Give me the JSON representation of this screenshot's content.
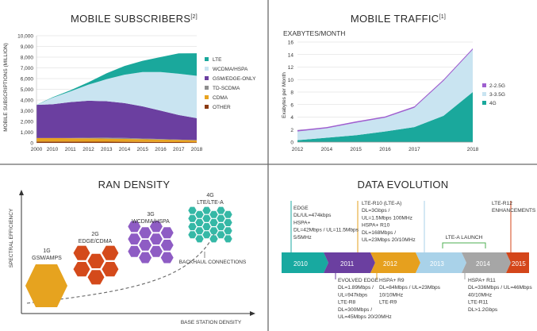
{
  "dividers": true,
  "colors": {
    "lte": "#1aa89c",
    "wcdma": "#c9e4f1",
    "gsm": "#6b3fa0",
    "tdscdma": "#8e8e8e",
    "cdma": "#e8a321",
    "other": "#8b3a12",
    "g22_5": "#9e5fcf",
    "g33_5": "#c9e4f1",
    "g4": "#1aa89c",
    "red": "#d44a1b",
    "purple": "#8e5cc4",
    "teal": "#35b8a6",
    "ev2010": "#18a9a0",
    "ev2011": "#6b3fa0",
    "ev2012": "#e6a01e",
    "ev2013": "#a9d2e9",
    "ev2014": "#a6a6a6",
    "ev2015": "#d4461a"
  },
  "chart_data": [
    {
      "type": "area",
      "title": "MOBILE SUBSCRIBERS",
      "title_sup": "[2]",
      "xlabel": "",
      "ylabel": "MOBILE SUBSCRIPTIONS (MILLION)",
      "x": [
        2000,
        2001,
        2002,
        2003,
        2004,
        2005,
        2006,
        2007,
        2008,
        2009,
        2010,
        2011,
        2012,
        2013,
        2014,
        2015,
        2016,
        2017,
        2018
      ],
      "x_ticks": [
        "2000",
        "2010",
        "2011",
        "2012",
        "2013",
        "2014",
        "2015",
        "2016",
        "2017",
        "2018"
      ],
      "y_ticks": [
        "0",
        "1,000",
        "2,000",
        "3,000",
        "4,000",
        "5,000",
        "6,000",
        "7,000",
        "8,000",
        "9,000",
        "10,000"
      ],
      "ylim": [
        0,
        10000
      ],
      "stacked": true,
      "series": [
        {
          "name": "OTHER",
          "color": "#8b3a12",
          "points": [
            [
              2000,
              120
            ],
            [
              2010,
              120
            ],
            [
              2013,
              110
            ],
            [
              2015,
              90
            ],
            [
              2018,
              60
            ]
          ]
        },
        {
          "name": "CDMA",
          "color": "#e8a321",
          "points": [
            [
              2000,
              330
            ],
            [
              2010,
              330
            ],
            [
              2012,
              310
            ],
            [
              2014,
              270
            ],
            [
              2016,
              230
            ],
            [
              2018,
              180
            ]
          ]
        },
        {
          "name": "TD-SCDMA",
          "color": "#8e8e8e",
          "points": [
            [
              2000,
              0
            ],
            [
              2010,
              0
            ],
            [
              2011,
              20
            ],
            [
              2012,
              60
            ],
            [
              2013,
              90
            ],
            [
              2014,
              90
            ],
            [
              2015,
              70
            ],
            [
              2016,
              50
            ],
            [
              2017,
              30
            ],
            [
              2018,
              20
            ]
          ]
        },
        {
          "name": "GSM/EDGE-ONLY",
          "color": "#6b3fa0",
          "points": [
            [
              2000,
              3100
            ],
            [
              2010,
              3150
            ],
            [
              2011,
              3350
            ],
            [
              2012,
              3450
            ],
            [
              2013,
              3400
            ],
            [
              2014,
              3250
            ],
            [
              2015,
              3000
            ],
            [
              2016,
              2650
            ],
            [
              2017,
              2300
            ],
            [
              2018,
              2050
            ]
          ]
        },
        {
          "name": "WCDMA/HSPA",
          "color": "#c9e4f1",
          "points": [
            [
              2000,
              0
            ],
            [
              2010,
              600
            ],
            [
              2011,
              1000
            ],
            [
              2012,
              1500
            ],
            [
              2013,
              2050
            ],
            [
              2014,
              2650
            ],
            [
              2015,
              3200
            ],
            [
              2016,
              3600
            ],
            [
              2017,
              3850
            ],
            [
              2018,
              3950
            ]
          ]
        },
        {
          "name": "LTE",
          "color": "#1aa89c",
          "points": [
            [
              2000,
              0
            ],
            [
              2010,
              50
            ],
            [
              2011,
              100
            ],
            [
              2012,
              220
            ],
            [
              2013,
              550
            ],
            [
              2014,
              820
            ],
            [
              2015,
              1050
            ],
            [
              2016,
              1400
            ],
            [
              2017,
              1900
            ],
            [
              2018,
              2100
            ]
          ]
        }
      ],
      "legend": [
        "LTE",
        "WCDMA/HSPA",
        "GSM/EDGE-ONLY",
        "TD-SCDMA",
        "CDMA",
        "OTHER"
      ],
      "legend_placement": "right"
    },
    {
      "type": "area",
      "title": "MOBILE TRAFFIC",
      "title_sup": "[1]",
      "unit_label": "EXABYTES/MONTH",
      "ylabel": "Exabytes per Month",
      "x": [
        2012,
        2013,
        2014,
        2015,
        2016,
        2017,
        2018
      ],
      "x_ticks": [
        "2012",
        "2014",
        "2015",
        "2016",
        "2017",
        "2018"
      ],
      "y_ticks": [
        "0",
        "2",
        "4",
        "6",
        "8",
        "10",
        "12",
        "14",
        "16"
      ],
      "ylim": [
        0,
        16
      ],
      "stacked": true,
      "series": [
        {
          "name": "4G",
          "color": "#1aa89c",
          "values": [
            0.3,
            0.7,
            1.1,
            1.7,
            2.4,
            4.2,
            8.0
          ]
        },
        {
          "name": "3-3.5G",
          "color": "#c9e4f1",
          "values": [
            1.4,
            1.5,
            2.0,
            2.2,
            3.1,
            5.6,
            6.8
          ]
        },
        {
          "name": "2-2.5G",
          "color": "#9e5fcf",
          "values": [
            0.2,
            0.2,
            0.2,
            0.2,
            0.2,
            0.2,
            0.2
          ]
        }
      ],
      "legend": [
        "2-2.5G",
        "3-3.5G",
        "4G"
      ],
      "legend_placement": "right"
    }
  ],
  "ran": {
    "title": "RAN DENSITY",
    "ylabel": "SPECTRAL EFFICIENCY",
    "xlabel": "BASE STATION DENSITY",
    "backhaul": "BACKHAUL CONNECTIONS",
    "gens": [
      {
        "line1": "1G",
        "line2": "GSM/AMPS"
      },
      {
        "line1": "2G",
        "line2": "EDGE/CDMA"
      },
      {
        "line1": "3G",
        "line2": "WCDMA/HSPA"
      },
      {
        "line1": "4G",
        "line2": "LTE/LTE-A"
      }
    ]
  },
  "evo": {
    "title": "DATA EVOLUTION",
    "years": [
      "2010",
      "2011",
      "2012",
      "2013",
      "2014",
      "2015"
    ],
    "launch": "LTE-A LAUNCH",
    "top_2010": [
      "EDGE",
      "DL/UL=474kbps",
      "HSPA+",
      "DL=42Mbps / UL=11.5Mbps",
      "5/5MHz"
    ],
    "top_2012": [
      "LTE-R10 (LTE-A)",
      "DL=3Gbps /",
      "UL=1.5Mbps 100MHz",
      "HSPA+ R10",
      "DL=168Mbps /",
      "UL=23Mbps 20/10MHz"
    ],
    "top_2015": [
      "LTE-R12",
      "ENHANCEMENTS"
    ],
    "bot_2011": [
      "EVOLVED EDGE",
      "DL=1.89Mbps /",
      "UL=947kbps",
      "LTE-R8",
      "DL=300Mbps /",
      "UL=45Mbps  20/20MHz"
    ],
    "bot_2012": [
      "HSPA+ R9",
      "DL=84Mbps / UL=23Mbps",
      "10/10MHz",
      "LTE-R9"
    ],
    "bot_2014": [
      "HSPA+ R11",
      "DL=336Mbps / UL=46Mbps",
      "40/10MHz",
      "LTE-R11",
      "DL>1.2Gbps"
    ]
  }
}
